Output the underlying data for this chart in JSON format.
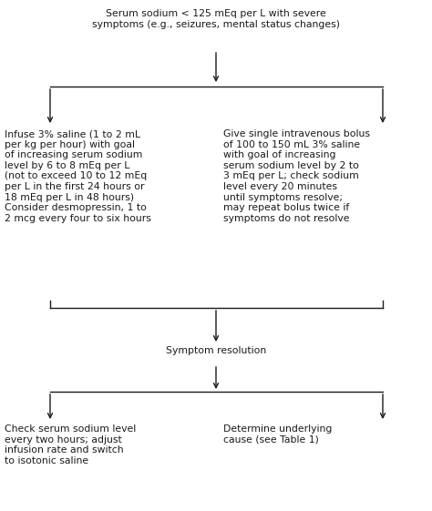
{
  "bg_color": "#ffffff",
  "text_color": "#1a1a1a",
  "arrow_color": "#1a1a1a",
  "line_color": "#1a1a1a",
  "font_size": 7.8,
  "top_text": "Serum sodium < 125 mEq per L with severe\nsymptoms (e.g., seizures, mental status changes)",
  "left_text": "Infuse 3% saline (1 to 2 mL\nper kg per hour) with goal\nof increasing serum sodium\nlevel by 6 to 8 mEq per L\n(not to exceed 10 to 12 mEq\nper L in the first 24 hours or\n18 mEq per L in 48 hours)\nConsider desmopressin, 1 to\n2 mcg every four to six hours",
  "right_text": "Give single intravenous bolus\nof 100 to 150 mL 3% saline\nwith goal of increasing\nserum sodium level by 2 to\n3 mEq per L; check sodium\nlevel every 20 minutes\nuntil symptoms resolve;\nmay repeat bolus twice if\nsymptoms do not resolve",
  "middle_text": "Symptom resolution",
  "bottom_left_text": "Check serum sodium level\nevery two hours; adjust\ninfusion rate and switch\nto isotonic saline",
  "bottom_right_text": "Determine underlying\ncause (see Table 1)",
  "figw": 4.74,
  "figh": 5.61,
  "dpi": 100
}
